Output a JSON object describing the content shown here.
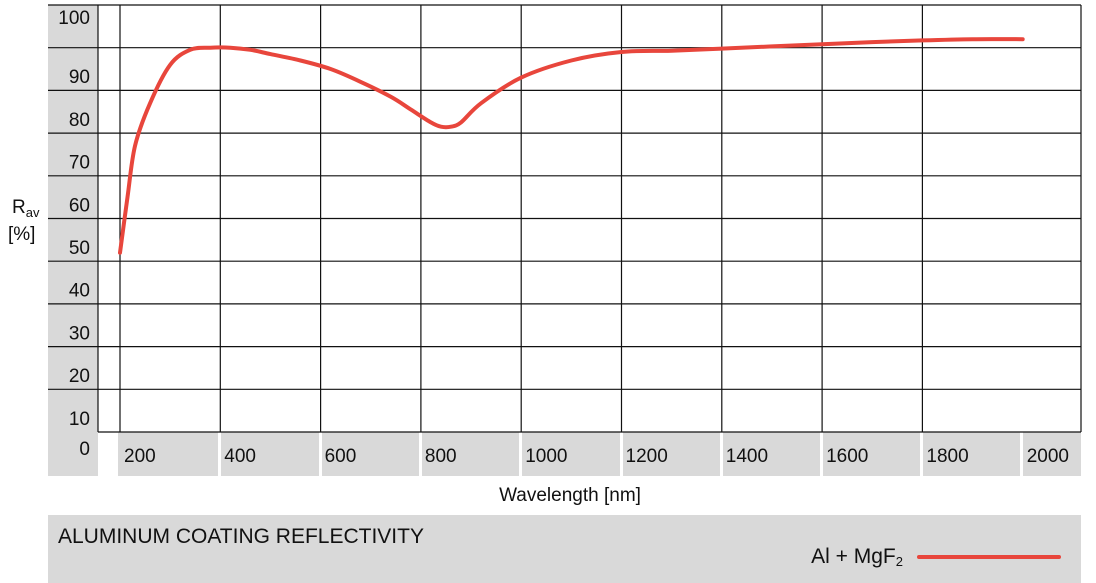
{
  "chart_data": {
    "type": "line",
    "title": "ALUMINUM COATING REFLECTIVITY",
    "xlabel": "Wavelength [nm]",
    "ylabel_main": "R",
    "ylabel_sub": "av",
    "ylabel_unit": "[%]",
    "xlim": [
      100,
      2000
    ],
    "ylim": [
      0,
      100
    ],
    "x_ticks": [
      200,
      400,
      600,
      800,
      1000,
      1200,
      1400,
      1600,
      1800,
      2000
    ],
    "y_ticks": [
      0,
      10,
      20,
      30,
      40,
      50,
      60,
      70,
      80,
      90,
      100
    ],
    "grid": true,
    "legend_position": "bottom-right",
    "series": [
      {
        "name_main": "Al + MgF",
        "name_sub": "2",
        "color": "#e8463c",
        "x": [
          200,
          215,
          230,
          260,
          300,
          340,
          380,
          420,
          460,
          500,
          560,
          620,
          680,
          740,
          780,
          820,
          840,
          860,
          880,
          920,
          1000,
          1100,
          1200,
          1300,
          1400,
          1500,
          1600,
          1700,
          1800,
          1900,
          2000
        ],
        "y": [
          42,
          55,
          67,
          77,
          86,
          89.5,
          90,
          90,
          89.5,
          88.5,
          87,
          85,
          82,
          78.5,
          75.5,
          72.5,
          71.5,
          71.5,
          72.5,
          77,
          83,
          87,
          89,
          89.3,
          89.8,
          90.3,
          90.8,
          91.3,
          91.7,
          92,
          92
        ]
      }
    ]
  }
}
